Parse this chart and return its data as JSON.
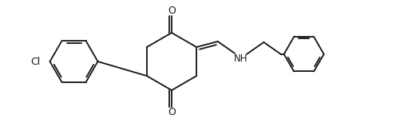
{
  "bg": "#ffffff",
  "lc": "#1a1a1a",
  "lw": 1.35,
  "fs": 9.0,
  "fw": 5.01,
  "fh": 1.54,
  "dpi": 100,
  "xlim": [
    0,
    10.02
  ],
  "ylim": [
    0,
    3.08
  ]
}
